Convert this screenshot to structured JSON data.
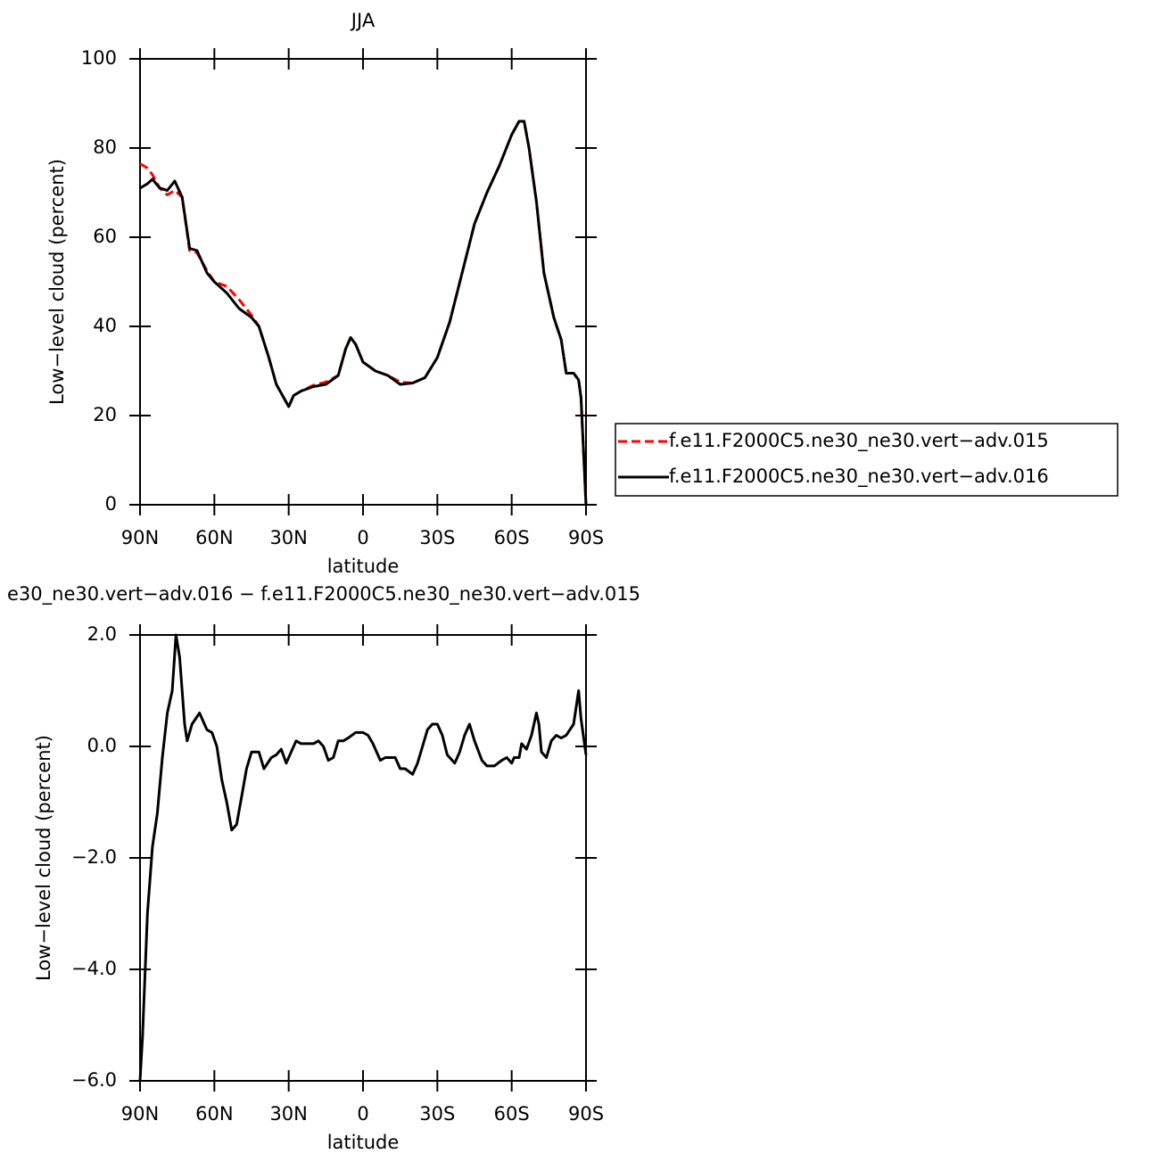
{
  "chart_data": [
    {
      "type": "line",
      "title": "JJA",
      "xlabel": "latitude",
      "ylabel": "Low−level cloud (percent)",
      "xlim": [
        90,
        -90
      ],
      "ylim": [
        0,
        100
      ],
      "xticks": [
        {
          "value": 90,
          "label": "90N"
        },
        {
          "value": 60,
          "label": "60N"
        },
        {
          "value": 30,
          "label": "30N"
        },
        0,
        {
          "value": -30,
          "label": "30S"
        },
        {
          "value": -60,
          "label": "60S"
        },
        {
          "value": -90,
          "label": "90S"
        }
      ],
      "yticks": [
        0,
        20,
        40,
        60,
        80,
        100
      ],
      "x": [
        90,
        87,
        85,
        82,
        79,
        76,
        73,
        70,
        67,
        63,
        60,
        55,
        50,
        45,
        42,
        38,
        35,
        30,
        28,
        25,
        20,
        15,
        10,
        7,
        5,
        3,
        0,
        -5,
        -10,
        -15,
        -20,
        -25,
        -30,
        -35,
        -40,
        -45,
        -50,
        -55,
        -60,
        -63,
        -65,
        -67,
        -70,
        -73,
        -77,
        -80,
        -82,
        -85,
        -87,
        -88,
        -90
      ],
      "series": [
        {
          "name": "f.e11.F2000C5.ne30_ne30.vert−adv.015",
          "color": "#ff0000",
          "dash": true,
          "values": [
            76.5,
            75.5,
            74,
            71,
            69.5,
            70.5,
            69,
            57,
            56.5,
            52.5,
            50,
            49,
            46,
            42.5,
            40,
            33,
            27,
            22,
            24.5,
            25.5,
            26.8,
            27.5,
            29,
            35,
            37.5,
            36,
            32,
            30,
            29,
            27.5,
            27.3,
            28.5,
            33,
            41,
            52,
            63,
            70,
            76,
            83,
            86,
            86,
            80,
            68,
            52,
            42,
            37,
            29.5,
            29.5,
            28,
            24,
            0
          ]
        },
        {
          "name": "f.e11.F2000C5.ne30_ne30.vert−adv.016",
          "color": "#000000",
          "dash": false,
          "values": [
            71,
            72,
            73,
            71,
            70.5,
            72.6,
            69,
            57.5,
            57,
            52,
            50,
            47.5,
            44,
            42,
            40,
            33,
            27,
            22,
            24.5,
            25.5,
            26.5,
            27,
            29,
            35,
            37.5,
            36,
            32,
            30,
            29,
            27,
            27.3,
            28.5,
            33,
            41,
            52,
            63,
            70,
            76,
            83,
            86,
            86,
            80,
            68,
            52,
            42,
            37,
            29.5,
            29.5,
            28,
            24,
            0
          ]
        }
      ]
    },
    {
      "type": "line",
      "title": "e30_ne30.vert−adv.016 − f.e11.F2000C5.ne30_ne30.vert−adv.015",
      "xlabel": "latitude",
      "ylabel": "Low−level cloud (percent)",
      "xlim": [
        90,
        -90
      ],
      "ylim": [
        -6.0,
        2.0
      ],
      "xticks": [
        {
          "value": 90,
          "label": "90N"
        },
        {
          "value": 60,
          "label": "60N"
        },
        {
          "value": 30,
          "label": "30N"
        },
        0,
        {
          "value": -30,
          "label": "30S"
        },
        {
          "value": -60,
          "label": "60S"
        },
        {
          "value": -90,
          "label": "90S"
        }
      ],
      "yticks": [
        {
          "value": -6,
          "label": "−6.0"
        },
        {
          "value": -4,
          "label": "−4.0"
        },
        {
          "value": -2,
          "label": "−2.0"
        },
        {
          "value": 0,
          "label": "0.0"
        },
        {
          "value": 2,
          "label": "2.0"
        }
      ],
      "x": [
        90,
        89,
        87,
        85,
        83,
        81,
        79,
        77,
        75.5,
        74,
        72,
        71,
        69,
        66,
        63,
        61,
        59,
        57,
        55,
        53,
        51,
        49,
        47,
        45,
        42,
        40,
        37,
        35,
        33,
        31,
        29,
        27,
        25,
        22,
        20,
        18,
        16,
        14,
        12,
        10,
        8,
        6,
        3,
        0,
        -2,
        -4,
        -7,
        -9,
        -11,
        -13,
        -15,
        -17,
        -20,
        -22,
        -24,
        -26,
        -28,
        -30,
        -32,
        -34,
        -37,
        -39,
        -41,
        -43,
        -45,
        -48,
        -50,
        -53,
        -56,
        -58,
        -60,
        -61,
        -63,
        -64,
        -66,
        -68,
        -70,
        -71,
        -72,
        -74,
        -76,
        -78,
        -80,
        -82,
        -85,
        -87,
        -88,
        -90
      ],
      "color": "#000000",
      "values": [
        -6.0,
        -5.2,
        -3.0,
        -1.8,
        -1.2,
        -0.2,
        0.6,
        1.0,
        2.0,
        1.6,
        0.4,
        0.1,
        0.4,
        0.6,
        0.3,
        0.25,
        0.0,
        -0.6,
        -1.0,
        -1.5,
        -1.4,
        -0.9,
        -0.4,
        -0.1,
        -0.1,
        -0.4,
        -0.2,
        -0.15,
        -0.05,
        -0.3,
        -0.1,
        0.1,
        0.05,
        0.05,
        0.05,
        0.1,
        0.0,
        -0.25,
        -0.2,
        0.1,
        0.1,
        0.15,
        0.25,
        0.25,
        0.2,
        0.05,
        -0.25,
        -0.2,
        -0.2,
        -0.2,
        -0.4,
        -0.4,
        -0.5,
        -0.3,
        0.0,
        0.3,
        0.4,
        0.4,
        0.2,
        -0.15,
        -0.3,
        -0.1,
        0.2,
        0.4,
        0.1,
        -0.25,
        -0.35,
        -0.35,
        -0.25,
        -0.2,
        -0.3,
        -0.2,
        -0.2,
        0.05,
        -0.05,
        0.2,
        0.6,
        0.4,
        -0.1,
        -0.2,
        0.1,
        0.2,
        0.15,
        0.2,
        0.4,
        1.0,
        0.5,
        -0.15
      ]
    }
  ]
}
